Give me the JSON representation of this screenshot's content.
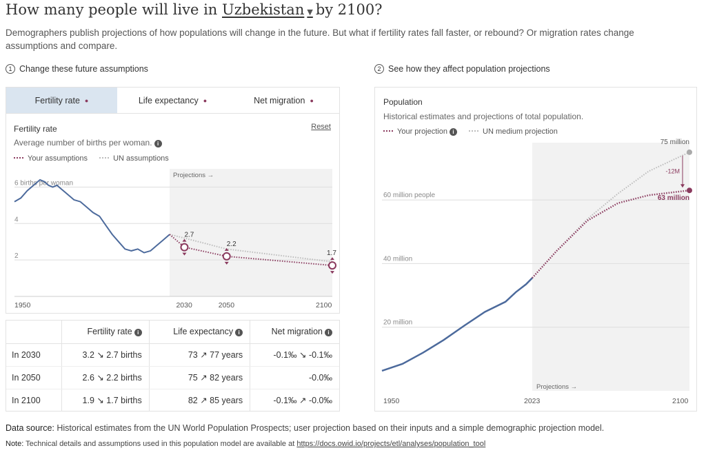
{
  "title": {
    "prefix": "How many people will live in",
    "country": "Uzbekistan",
    "suffix": "by 2100?"
  },
  "subtitle": "Demographers publish projections of how populations will change in the future. But what if fertility rates fall faster, or rebound? Or migration rates change",
  "subtitle2": "assumptions and compare.",
  "steps": {
    "step1": "Change these future assumptions",
    "step1_num": "1",
    "step2": "See how they affect population projections",
    "step2_num": "2"
  },
  "tabs": [
    {
      "label": "Fertility rate",
      "dot": "●"
    },
    {
      "label": "Life expectancy",
      "dot": "●"
    },
    {
      "label": "Net migration",
      "dot": "●"
    }
  ],
  "fertility_chart": {
    "title": "Fertility rate",
    "subtitle": "Average number of births per woman.",
    "reset": "Reset",
    "legend_yours": "Your assumptions",
    "legend_un": "UN assumptions",
    "projections_label": "Projections →",
    "chart_data": {
      "type": "line",
      "title": "Fertility rate",
      "ylabel": "births per woman",
      "ylim": [
        0,
        7
      ],
      "yticks": [
        {
          "v": 6,
          "label": "6 births per woman"
        },
        {
          "v": 4,
          "label": "4"
        },
        {
          "v": 2,
          "label": "2"
        }
      ],
      "xticks": [
        "1950",
        "2030",
        "2050",
        "2100"
      ],
      "historical": {
        "x": [
          1950,
          1953,
          1956,
          1959,
          1962,
          1964,
          1966,
          1968,
          1970,
          1972,
          1975,
          1978,
          1981,
          1984,
          1987,
          1990,
          1993,
          1996,
          1999,
          2002,
          2005,
          2008,
          2011,
          2014,
          2017,
          2020,
          2023
        ],
        "y": [
          5.2,
          5.4,
          5.8,
          6.1,
          6.4,
          6.3,
          6.1,
          6.0,
          6.1,
          5.9,
          5.6,
          5.3,
          5.2,
          4.9,
          4.6,
          4.4,
          3.9,
          3.4,
          3.0,
          2.6,
          2.5,
          2.6,
          2.4,
          2.5,
          2.8,
          3.1,
          3.4
        ]
      },
      "your_projection": {
        "x": [
          2023,
          2030,
          2050,
          2100
        ],
        "y": [
          3.4,
          2.7,
          2.2,
          1.7
        ]
      },
      "un_projection": {
        "x": [
          2023,
          2030,
          2050,
          2100
        ],
        "y": [
          3.4,
          3.2,
          2.6,
          1.9
        ]
      },
      "point_labels": [
        "2.7",
        "2.2",
        "1.7"
      ]
    }
  },
  "table": {
    "headers": [
      "",
      "Fertility rate",
      "Life expectancy",
      "Net migration"
    ],
    "rows": [
      {
        "label": "In 2030",
        "fert": "3.2 ↘ 2.7 births",
        "life": "73 ↗ 77 years",
        "mig": "-0.1‰ ↘ -0.1‰"
      },
      {
        "label": "In 2050",
        "fert": "2.6 ↘ 2.2 births",
        "life": "75 ↗ 82 years",
        "mig": "-0.0‰"
      },
      {
        "label": "In 2100",
        "fert": "1.9 ↘ 1.7 births",
        "life": "82 ↗ 85 years",
        "mig": "-0.1‰ ↗ -0.0‰"
      }
    ]
  },
  "population_chart": {
    "title": "Population",
    "subtitle": "Historical estimates and projections of total population.",
    "legend_yours": "Your projection",
    "legend_un": "UN medium projection",
    "projections_label": "Projections →",
    "chart_data": {
      "type": "line",
      "title": "Population",
      "ylim": [
        0,
        80000000
      ],
      "yticks": [
        {
          "v": 60000000,
          "label": "60 million people"
        },
        {
          "v": 40000000,
          "label": "40 million"
        },
        {
          "v": 20000000,
          "label": "20 million"
        }
      ],
      "xticks": [
        "1950",
        "2023",
        "2100"
      ],
      "historical": {
        "x": [
          1950,
          1960,
          1970,
          1980,
          1990,
          2000,
          2010,
          2015,
          2020,
          2023
        ],
        "y": [
          6300000,
          8500000,
          12000000,
          16000000,
          20500000,
          24800000,
          28000000,
          31000000,
          33500000,
          35500000
        ]
      },
      "your_projection": {
        "x": [
          2023,
          2035,
          2050,
          2065,
          2080,
          2100
        ],
        "y": [
          35500000,
          44000000,
          53500000,
          59000000,
          61500000,
          63000000
        ]
      },
      "un_projection": {
        "x": [
          2023,
          2035,
          2050,
          2065,
          2080,
          2100
        ],
        "y": [
          35500000,
          44000000,
          54000000,
          62000000,
          69000000,
          75000000
        ]
      },
      "end_labels": {
        "un": "75 million",
        "yours": "63 million",
        "diff": "-12M"
      }
    }
  },
  "source": {
    "bold": "Data source:",
    "text": " Historical estimates from the UN World Population Prospects; user projection based on their inputs and a simple demographic projection model."
  },
  "note": {
    "bold": "Note:",
    "text": " Technical details and assumptions used in this population model are available at ",
    "link": "https://docs.owid.io/projects/etl/analyses/population_tool"
  },
  "colors": {
    "accent": "#8a3a5e",
    "line": "#4c6a9c",
    "un": "#bbbbbb",
    "tab_active": "#dae5f0"
  }
}
